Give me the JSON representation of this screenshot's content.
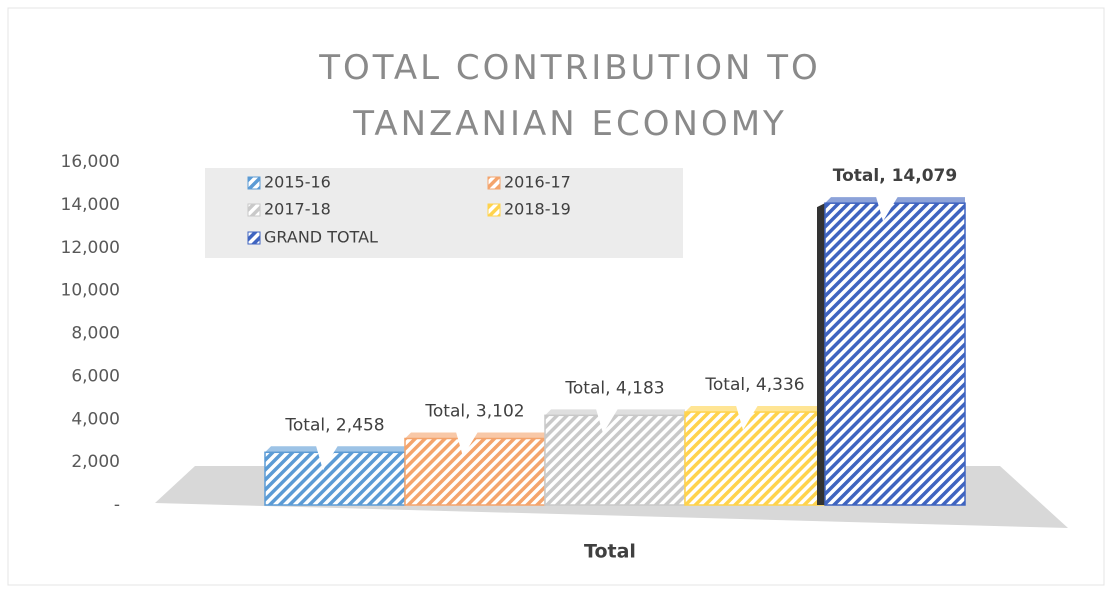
{
  "chart_data": {
    "type": "bar",
    "title": "TOTAL CONTRIBUTION TO TANZANIAN ECONOMY",
    "categories": [
      "Total"
    ],
    "series": [
      {
        "name": "2015-16",
        "color": "#5b9bd5",
        "values": [
          2458
        ],
        "value_labels": [
          "Total, 2,458"
        ]
      },
      {
        "name": "2016-17",
        "color": "#f4a46c",
        "values": [
          3102
        ],
        "value_labels": [
          "Total, 3,102"
        ]
      },
      {
        "name": "2017-18",
        "color": "#c9c9c9",
        "values": [
          4183
        ],
        "value_labels": [
          "Total, 4,183"
        ]
      },
      {
        "name": "2018-19",
        "color": "#ffd34d",
        "values": [
          4336
        ],
        "value_labels": [
          "Total, 4,336"
        ]
      },
      {
        "name": "GRAND TOTAL",
        "color": "#3f64c0",
        "values": [
          14079
        ],
        "value_labels": [
          "Total, 14,079"
        ]
      }
    ],
    "ylim": [
      0,
      16000
    ],
    "yticks": [
      {
        "value": 0,
        "label": "-"
      },
      {
        "value": 2000,
        "label": "2,000"
      },
      {
        "value": 4000,
        "label": "4,000"
      },
      {
        "value": 6000,
        "label": "6,000"
      },
      {
        "value": 8000,
        "label": "8,000"
      },
      {
        "value": 10000,
        "label": "10,000"
      },
      {
        "value": 12000,
        "label": "12,000"
      },
      {
        "value": 14000,
        "label": "14,000"
      },
      {
        "value": 16000,
        "label": "16,000"
      }
    ],
    "grid": false,
    "legend": "top-left"
  }
}
